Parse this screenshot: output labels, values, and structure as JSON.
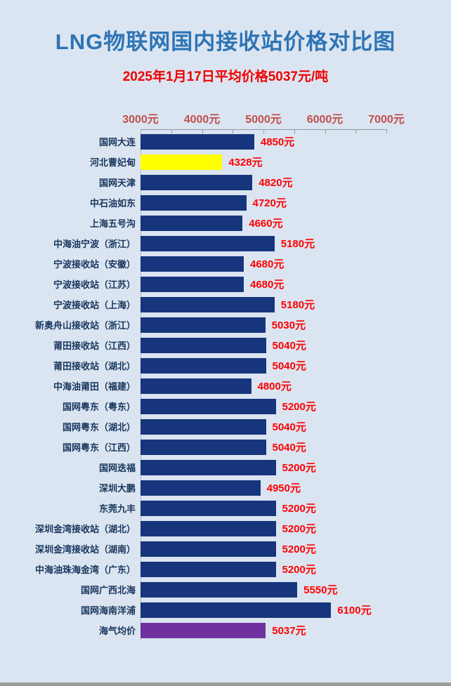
{
  "title": "LNG物联网国内接收站价格对比图",
  "subtitle": "2025年1月17日平均价格5037元/吨",
  "colors": {
    "background": "#dbe5f1",
    "title_blue": "#2e74b5",
    "subtitle_red": "#f00000",
    "value_red": "#fe0000",
    "tick_label_red": "#c0504d",
    "station_label_navy": "#17365d",
    "bar_navy": "#16357c",
    "bar_yellow": "#ffff00",
    "bar_purple": "#7030a0",
    "axis_gray": "#8f98a3",
    "footer_gray": "#9d9d9d"
  },
  "chart_data": {
    "type": "bar",
    "orientation": "horizontal",
    "title": "LNG物联网国内接收站价格对比图",
    "subtitle": "2025年1月17日平均价格5037元/吨",
    "unit": "元/吨",
    "xlim": [
      3000,
      7000
    ],
    "x_tick_labels": [
      "3000元",
      "4000元",
      "5000元",
      "6000元",
      "7000元"
    ],
    "minor_tick_step": 500,
    "grid": false,
    "legend": false,
    "categories": [
      "国网大连",
      "河北曹妃甸",
      "国网天津",
      "中石油如东",
      "上海五号沟",
      "中海油宁波（浙江）",
      "宁波接收站（安徽）",
      "宁波接收站（江苏）",
      "宁波接收站（上海）",
      "新奥舟山接收站（浙江）",
      "莆田接收站（江西）",
      "莆田接收站（湖北）",
      "中海油莆田（福建）",
      "国网粤东（粤东）",
      "国网粤东（湖北）",
      "国网粤东（江西）",
      "国网迭福",
      "深圳大鹏",
      "东莞九丰",
      "深圳金湾接收站（湖北）",
      "深圳金湾接收站（湖南）",
      "中海油珠海金湾（广东）",
      "国网广西北海",
      "国网海南洋浦",
      "海气均价"
    ],
    "values": [
      4850,
      4328,
      4820,
      4720,
      4660,
      5180,
      4680,
      4680,
      5180,
      5030,
      5040,
      5040,
      4800,
      5200,
      5040,
      5040,
      5200,
      4950,
      5200,
      5200,
      5200,
      5200,
      5550,
      6100,
      5037
    ],
    "value_labels": [
      "4850元",
      "4328元",
      "4820元",
      "4720元",
      "4660元",
      "5180元",
      "4680元",
      "4680元",
      "5180元",
      "5030元",
      "5040元",
      "5040元",
      "4800元",
      "5200元",
      "5040元",
      "5040元",
      "5200元",
      "4950元",
      "5200元",
      "5200元",
      "5200元",
      "5200元",
      "5550元",
      "6100元",
      "5037元"
    ],
    "bar_colors": [
      "#16357c",
      "#ffff00",
      "#16357c",
      "#16357c",
      "#16357c",
      "#16357c",
      "#16357c",
      "#16357c",
      "#16357c",
      "#16357c",
      "#16357c",
      "#16357c",
      "#16357c",
      "#16357c",
      "#16357c",
      "#16357c",
      "#16357c",
      "#16357c",
      "#16357c",
      "#16357c",
      "#16357c",
      "#16357c",
      "#16357c",
      "#16357c",
      "#7030a0"
    ]
  }
}
